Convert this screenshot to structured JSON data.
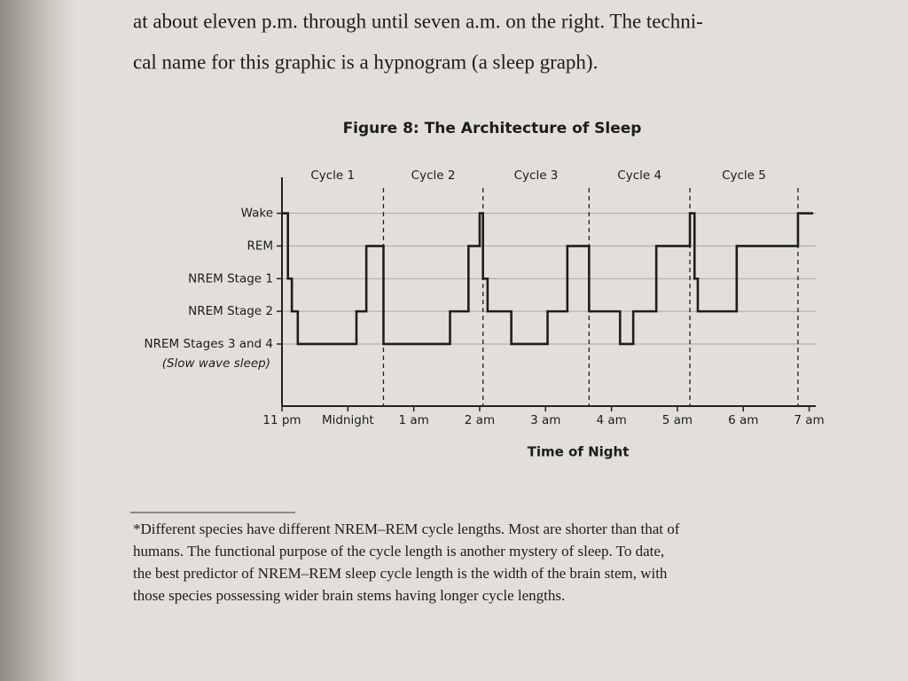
{
  "page": {
    "lines": [
      "at about eleven p.m. through until seven a.m. on the right. The techni-",
      "cal name for this graphic is a hypnogram (a sleep graph)."
    ]
  },
  "chart_data": {
    "type": "line",
    "step": "post",
    "title": "Figure 8: The Architecture of Sleep",
    "xlabel": "Time of Night",
    "annotation": "(Slow wave sleep)",
    "x": [
      0,
      0.09,
      0.15,
      0.24,
      1.13,
      1.28,
      1.54,
      2.55,
      2.83,
      3.0,
      3.05,
      3.12,
      3.48,
      4.03,
      4.33,
      4.66,
      5.13,
      5.33,
      5.68,
      6.19,
      6.26,
      6.31,
      6.9,
      7.83,
      8.06
    ],
    "series": [
      {
        "color": "#1e1e1e",
        "values": [
          4,
          2,
          1,
          0,
          1,
          3,
          0,
          1,
          3,
          4,
          2,
          1,
          0,
          1,
          3,
          1,
          0,
          1,
          3,
          4,
          2,
          1,
          3,
          4,
          4
        ]
      }
    ],
    "xlim": [
      0,
      8.1
    ],
    "xticks": [
      {
        "value": 0,
        "label": "11 pm"
      },
      {
        "value": 1,
        "label": "Midnight"
      },
      {
        "value": 2,
        "label": "1 am"
      },
      {
        "value": 3,
        "label": "2 am"
      },
      {
        "value": 4,
        "label": "3 am"
      },
      {
        "value": 5,
        "label": "4 am"
      },
      {
        "value": 6,
        "label": "5 am"
      },
      {
        "value": 7,
        "label": "6 am"
      },
      {
        "value": 8,
        "label": "7 am"
      }
    ],
    "ylim": [
      -1.9,
      5.1
    ],
    "yticks": [
      {
        "value": 4,
        "label": "Wake"
      },
      {
        "value": 3,
        "label": "REM"
      },
      {
        "value": 2,
        "label": "NREM Stage 1"
      },
      {
        "value": 1,
        "label": "NREM Stage 2"
      },
      {
        "value": 0,
        "label": "NREM Stages 3 and 4"
      }
    ],
    "grid": true,
    "cycle_labels": [
      "Cycle 1",
      "Cycle 2",
      "Cycle 3",
      "Cycle 4",
      "Cycle 5"
    ],
    "cycle_boundaries": [
      1.54,
      3.05,
      4.66,
      6.19,
      7.83
    ]
  },
  "footnote": {
    "lines": [
      "*Different species have different NREM–REM cycle lengths. Most are shorter than that of",
      "humans. The functional purpose of the cycle length is another mystery of sleep. To date,",
      "the best predictor of NREM–REM sleep cycle length is the width of the brain stem, with",
      "those species possessing wider brain stems having longer cycle lengths."
    ]
  }
}
